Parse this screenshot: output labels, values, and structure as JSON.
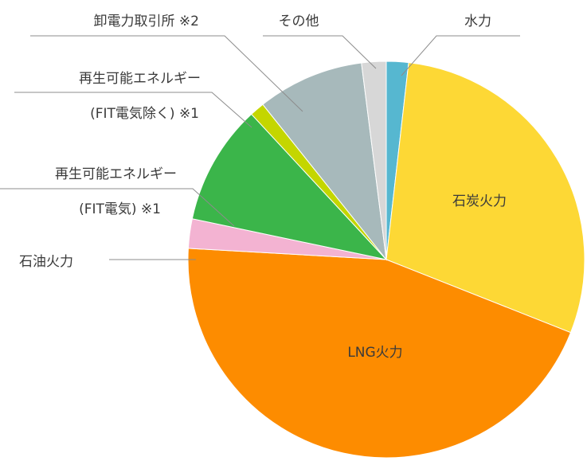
{
  "chart_data": {
    "type": "pie",
    "title": "",
    "slices": [
      {
        "label": "水力",
        "value": 1.8,
        "color": "#56b7d0"
      },
      {
        "label": "石炭火力",
        "value": 29.2,
        "color": "#fdd835"
      },
      {
        "label": "LNG火力",
        "value": 44.9,
        "color": "#fd8c00"
      },
      {
        "label": "石油火力",
        "value": 2.4,
        "color": "#f3b3d2"
      },
      {
        "label": "再生可能エネルギー",
        "label2": "(FIT電気) ※1",
        "value": 9.8,
        "color": "#3bb54a"
      },
      {
        "label": "再生可能エネルギー",
        "label2": "(FIT電気除く) ※1",
        "value": 1.2,
        "color": "#c4d600"
      },
      {
        "label": "卸電力取引所 ※2",
        "value": 8.7,
        "color": "#a7b9bb"
      },
      {
        "label": "その他",
        "value": 2.0,
        "color": "#d7d7d7"
      }
    ],
    "legend": "none"
  }
}
